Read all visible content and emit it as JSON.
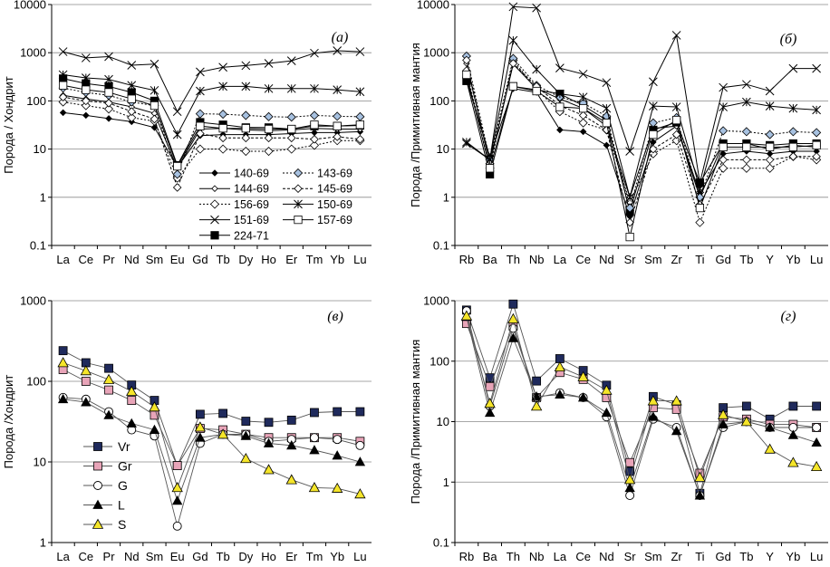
{
  "chart_data": [
    {
      "type": "line",
      "panel_label": "(а)",
      "ylabel": "Порода / Хондрит",
      "yscale": "log",
      "ylim": [
        0.1,
        10000
      ],
      "yticks": [
        "0.1",
        "1",
        "10",
        "100",
        "1000",
        "10000"
      ],
      "categories": [
        "La",
        "Ce",
        "Pr",
        "Nd",
        "Sm",
        "Eu",
        "Gd",
        "Tb",
        "Dy",
        "Ho",
        "Er",
        "Tm",
        "Yb",
        "Lu"
      ],
      "legend_position": "bottom-center",
      "series": [
        {
          "name": "140-69",
          "values": [
            57,
            50,
            43,
            37,
            28,
            4.2,
            19,
            20,
            20,
            20,
            21,
            22,
            22,
            23
          ]
        },
        {
          "name": "144-69",
          "values": [
            130,
            110,
            95,
            75,
            55,
            4.0,
            26,
            27,
            25,
            24,
            25,
            27,
            26,
            26
          ]
        },
        {
          "name": "156-69",
          "values": [
            95,
            80,
            68,
            45,
            38,
            2.5,
            10,
            10,
            9,
            9,
            10,
            12,
            15,
            15
          ]
        },
        {
          "name": "151-69",
          "values": [
            1050,
            780,
            830,
            550,
            580,
            60,
            400,
            500,
            540,
            600,
            680,
            980,
            1100,
            1050
          ]
        },
        {
          "name": "224-71",
          "values": [
            290,
            230,
            200,
            150,
            100,
            4.6,
            36,
            32,
            28,
            28,
            26,
            30,
            30,
            31
          ]
        },
        {
          "name": "143-69",
          "values": [
            185,
            150,
            130,
            95,
            80,
            3.0,
            54,
            53,
            50,
            47,
            46,
            50,
            48,
            47
          ]
        },
        {
          "name": "145-69",
          "values": [
            120,
            100,
            90,
            60,
            42,
            1.6,
            21,
            17,
            17,
            17,
            17,
            16,
            18,
            16
          ]
        },
        {
          "name": "150-69",
          "values": [
            350,
            300,
            280,
            210,
            165,
            20,
            160,
            200,
            200,
            180,
            180,
            180,
            170,
            155
          ]
        },
        {
          "name": "157-69",
          "values": [
            210,
            170,
            150,
            110,
            80,
            4.4,
            30,
            27,
            27,
            26,
            26,
            32,
            30,
            32
          ]
        }
      ]
    },
    {
      "type": "line",
      "panel_label": "(б)",
      "ylabel": "Порода /Примитивная мантия",
      "yscale": "log",
      "ylim": [
        0.1,
        10000
      ],
      "yticks": [
        "0.1",
        "1",
        "10",
        "100",
        "1000",
        "10000"
      ],
      "categories": [
        "Rb",
        "Ba",
        "Th",
        "Nb",
        "La",
        "Ce",
        "Nd",
        "Sr",
        "Sm",
        "Zr",
        "Ti",
        "Gd",
        "Tb",
        "Y",
        "Yb",
        "Lu"
      ],
      "series": [
        {
          "name": "140-69",
          "values": [
            270,
            7,
            180,
            150,
            25,
            23,
            12,
            0.4,
            14,
            30,
            1.2,
            8,
            9,
            8,
            9,
            9
          ]
        },
        {
          "name": "144-69",
          "values": [
            600,
            5,
            580,
            180,
            110,
            70,
            30,
            1.0,
            27,
            30,
            1.0,
            13,
            13,
            10,
            12,
            11
          ]
        },
        {
          "name": "156-69",
          "values": [
            420,
            4,
            700,
            170,
            60,
            35,
            25,
            0.8,
            8,
            15,
            0.3,
            4,
            4,
            4,
            7,
            6
          ]
        },
        {
          "name": "151-69",
          "values": [
            13,
            6,
            9000,
            8500,
            480,
            360,
            240,
            9,
            250,
            2300,
            2,
            190,
            220,
            160,
            470,
            470
          ]
        },
        {
          "name": "224-71",
          "values": [
            260,
            3,
            200,
            170,
            140,
            80,
            40,
            0.5,
            25,
            36,
            2,
            13,
            13,
            12,
            13,
            13
          ]
        },
        {
          "name": "143-69",
          "values": [
            850,
            6,
            760,
            210,
            120,
            90,
            48,
            0.6,
            35,
            45,
            1,
            24,
            23,
            20,
            23,
            22
          ]
        },
        {
          "name": "145-69",
          "values": [
            700,
            5,
            600,
            200,
            80,
            50,
            25,
            0.3,
            10,
            20,
            0.7,
            6,
            6,
            6,
            7,
            7
          ]
        },
        {
          "name": "150-69",
          "values": [
            14,
            6,
            1800,
            450,
            140,
            120,
            70,
            1.0,
            78,
            75,
            1.5,
            75,
            95,
            78,
            70,
            65
          ]
        },
        {
          "name": "157-69",
          "values": [
            350,
            4,
            200,
            160,
            75,
            70,
            35,
            0.15,
            20,
            40,
            0.6,
            11,
            11,
            11,
            11,
            12
          ]
        }
      ]
    },
    {
      "type": "line",
      "panel_label": "(в)",
      "ylabel": "Порода /Хондрит",
      "yscale": "log",
      "ylim": [
        1,
        1000
      ],
      "yticks": [
        "1",
        "10",
        "100",
        "1000"
      ],
      "categories": [
        "La",
        "Ce",
        "Pr",
        "Nd",
        "Sm",
        "Eu",
        "Gd",
        "Tb",
        "Dy",
        "Ho",
        "Er",
        "Tm",
        "Yb",
        "Lu"
      ],
      "legend_position": "bottom-left",
      "series": [
        {
          "name": "Vr",
          "values": [
            240,
            170,
            145,
            90,
            58,
            9,
            39,
            40,
            32,
            31,
            33,
            41,
            42,
            42
          ]
        },
        {
          "name": "Gr",
          "values": [
            140,
            100,
            78,
            58,
            38,
            9,
            26,
            25,
            22,
            20,
            20,
            20,
            20,
            18
          ]
        },
        {
          "name": "G",
          "values": [
            63,
            60,
            42,
            25,
            21,
            1.6,
            17,
            22,
            22,
            18,
            19,
            20,
            19,
            16
          ]
        },
        {
          "name": "L",
          "values": [
            60,
            55,
            38,
            30,
            25,
            3.3,
            20,
            22,
            21,
            17,
            16,
            14,
            12,
            10
          ]
        },
        {
          "name": "S",
          "values": [
            170,
            135,
            105,
            75,
            48,
            4.8,
            27,
            22,
            11,
            8,
            6,
            4.8,
            4.7,
            4
          ]
        }
      ]
    },
    {
      "type": "line",
      "panel_label": "(г)",
      "ylabel": "Порода /Примитивная мантия",
      "yscale": "log",
      "ylim": [
        0.1,
        1000
      ],
      "yticks": [
        "0.1",
        "1",
        "10",
        "100",
        "1000"
      ],
      "categories": [
        "Rb",
        "Ba",
        "Th",
        "Nb",
        "La",
        "Ce",
        "Nd",
        "Sr",
        "Sm",
        "Zr",
        "Ti",
        "Gd",
        "Tb",
        "Y",
        "Yb",
        "Lu"
      ],
      "series": [
        {
          "name": "Vr",
          "values": [
            700,
            53,
            880,
            47,
            110,
            70,
            40,
            1.5,
            26,
            19,
            0.65,
            17,
            18,
            11,
            18,
            18
          ]
        },
        {
          "name": "Gr",
          "values": [
            420,
            38,
            380,
            25,
            65,
            50,
            25,
            2.1,
            17,
            16,
            1.4,
            12,
            11,
            9,
            9,
            8
          ]
        },
        {
          "name": "G",
          "values": [
            680,
            18,
            350,
            25,
            30,
            25,
            12,
            0.6,
            11,
            8,
            0.6,
            8,
            10,
            8,
            8,
            8
          ]
        },
        {
          "name": "L",
          "values": [
            540,
            14,
            240,
            26,
            28,
            25,
            14,
            0.8,
            12,
            7,
            0.6,
            9,
            10,
            8,
            6,
            4.5
          ]
        },
        {
          "name": "S",
          "values": [
            560,
            20,
            500,
            18,
            80,
            55,
            33,
            1.1,
            22,
            22,
            1.2,
            13,
            10,
            3.5,
            2.1,
            1.8
          ]
        }
      ]
    }
  ]
}
